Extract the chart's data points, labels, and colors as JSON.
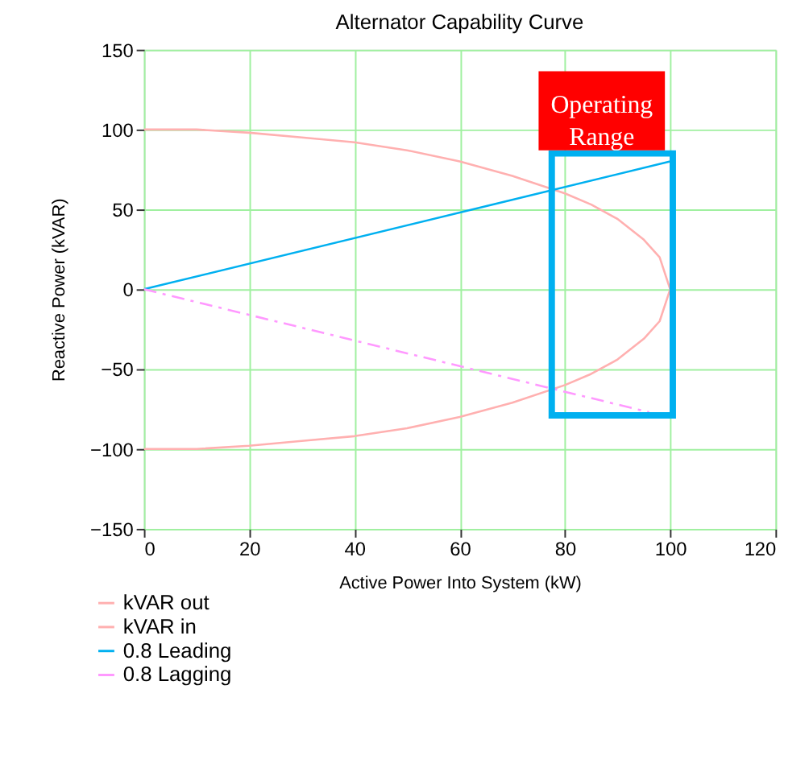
{
  "chart_data": {
    "type": "line",
    "title": "Alternator Capability Curve",
    "xlabel": "Active Power Into System (kW)",
    "ylabel": "Reactive Power (kVAR)",
    "series": [
      {
        "name": "kVAR out",
        "color": "#ffb0b0",
        "line_style": "solid",
        "x": [
          0,
          10,
          20,
          30,
          40,
          50,
          60,
          70,
          80,
          85,
          90,
          95,
          98,
          100
        ],
        "values": [
          100,
          100,
          98,
          95,
          92,
          87,
          80,
          71,
          60,
          53,
          44,
          31,
          20,
          0
        ]
      },
      {
        "name": "kVAR in",
        "color": "#ffb0b0",
        "line_style": "solid",
        "x": [
          0,
          10,
          20,
          30,
          40,
          50,
          60,
          70,
          80,
          85,
          90,
          95,
          98,
          100
        ],
        "values": [
          -100,
          -100,
          -98,
          -95,
          -92,
          -87,
          -80,
          -71,
          -60,
          -53,
          -44,
          -31,
          -20,
          0
        ]
      },
      {
        "name": "0.8 Leading",
        "color": "#00b0f0",
        "line_style": "solid",
        "x": [
          0,
          100
        ],
        "values": [
          0,
          80
        ]
      },
      {
        "name": "0.8 Lagging",
        "color": "#ff99ff",
        "line_style": "dashed",
        "x": [
          0,
          96
        ],
        "values": [
          0,
          -77
        ]
      }
    ],
    "xlim": [
      0,
      120
    ],
    "xticks": [
      0,
      20,
      40,
      60,
      80,
      100,
      120
    ],
    "ylim": [
      -150,
      150
    ],
    "yticks": [
      -150,
      -100,
      -50,
      0,
      50,
      100,
      150
    ],
    "grid": true,
    "legend": "bottom left",
    "annotations": [
      "Operating Range"
    ]
  }
}
